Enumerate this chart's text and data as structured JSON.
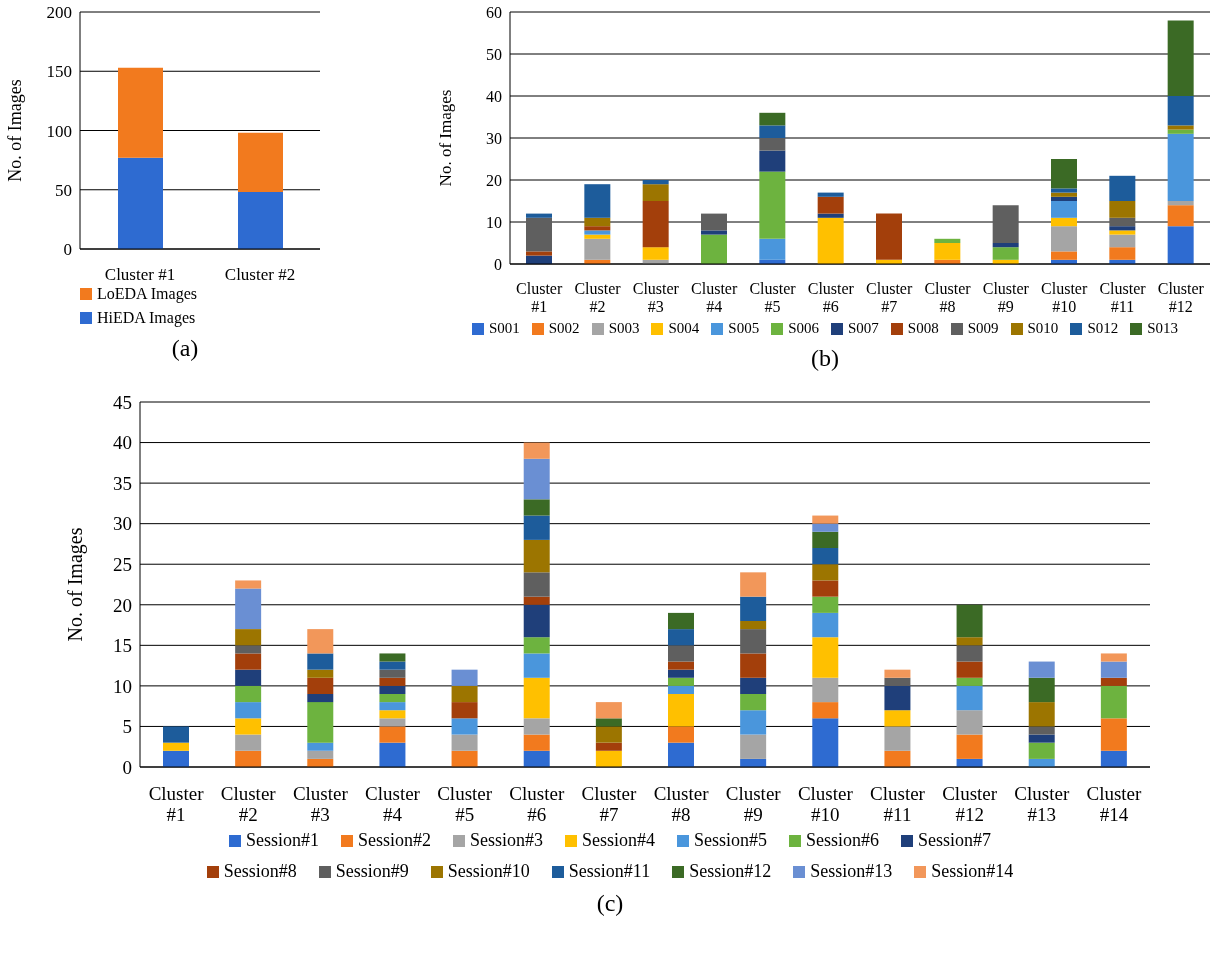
{
  "chart_data": [
    {
      "type": "bar",
      "stacked": true,
      "ylabel": "No. of Images",
      "categories": [
        "Cluster #1",
        "Cluster #2"
      ],
      "ylim": [
        0,
        200
      ],
      "yticks": [
        0,
        50,
        100,
        150,
        200
      ],
      "grid": "y",
      "legend": "bottom left",
      "annotations": [
        "(a)"
      ],
      "series": [
        {
          "name": "HiEDA Images",
          "color": "#2e6bd1",
          "values": [
            77,
            48
          ]
        },
        {
          "name": "LoEDA Images",
          "color": "#f27a1e",
          "values": [
            76,
            50
          ]
        }
      ]
    },
    {
      "type": "bar",
      "stacked": true,
      "ylabel": "No. of Images",
      "categories": [
        "Cluster #1",
        "Cluster #2",
        "Cluster #3",
        "Cluster #4",
        "Cluster #5",
        "Cluster #6",
        "Cluster #7",
        "Cluster #8",
        "Cluster #9",
        "Cluster #10",
        "Cluster #11",
        "Cluster #12"
      ],
      "ylim": [
        0,
        60
      ],
      "yticks": [
        0,
        10,
        20,
        30,
        40,
        50,
        60
      ],
      "grid": "y",
      "legend": "bottom",
      "annotations": [
        "(b)"
      ],
      "series": [
        {
          "name": "S001",
          "color": "#2e6bd1",
          "values": [
            0,
            0,
            0,
            0,
            1,
            0,
            0,
            0,
            0,
            1,
            1,
            9
          ]
        },
        {
          "name": "S002",
          "color": "#f27a1e",
          "values": [
            0,
            1,
            0,
            0,
            0,
            0,
            0,
            1,
            0,
            2,
            3,
            5
          ]
        },
        {
          "name": "S003",
          "color": "#a5a5a5",
          "values": [
            0,
            5,
            1,
            0,
            0,
            0,
            0,
            0,
            0,
            6,
            3,
            1
          ]
        },
        {
          "name": "S004",
          "color": "#ffc000",
          "values": [
            0,
            1,
            3,
            0,
            0,
            11,
            1,
            4,
            1,
            2,
            1,
            0
          ]
        },
        {
          "name": "S005",
          "color": "#4a96dc",
          "values": [
            0,
            1,
            0,
            0,
            5,
            0,
            0,
            0,
            0,
            4,
            0,
            16
          ]
        },
        {
          "name": "S006",
          "color": "#6db33f",
          "values": [
            0,
            0,
            0,
            7,
            16,
            0,
            0,
            1,
            3,
            0,
            0,
            1
          ]
        },
        {
          "name": "S007",
          "color": "#1f3f7a",
          "values": [
            2,
            0,
            0,
            1,
            5,
            1,
            0,
            0,
            1,
            1,
            1,
            0
          ]
        },
        {
          "name": "S008",
          "color": "#a33f0b",
          "values": [
            1,
            1,
            11,
            0,
            0,
            4,
            11,
            0,
            0,
            0,
            0,
            0
          ]
        },
        {
          "name": "S009",
          "color": "#5f5f5f",
          "values": [
            8,
            0,
            0,
            4,
            3,
            0,
            0,
            0,
            9,
            0,
            2,
            0
          ]
        },
        {
          "name": "S010",
          "color": "#9c7500",
          "values": [
            0,
            2,
            4,
            0,
            0,
            0,
            0,
            0,
            0,
            1,
            4,
            1
          ]
        },
        {
          "name": "S012",
          "color": "#1d5c9b",
          "values": [
            1,
            8,
            1,
            0,
            3,
            1,
            0,
            0,
            0,
            1,
            6,
            7
          ]
        },
        {
          "name": "S013",
          "color": "#3b6a25",
          "values": [
            0,
            0,
            0,
            0,
            3,
            0,
            0,
            0,
            0,
            7,
            0,
            18
          ]
        }
      ]
    },
    {
      "type": "bar",
      "stacked": true,
      "ylabel": "No. of Images",
      "categories": [
        "Cluster #1",
        "Cluster #2",
        "Cluster #3",
        "Cluster #4",
        "Cluster #5",
        "Cluster #6",
        "Cluster #7",
        "Cluster #8",
        "Cluster #9",
        "Cluster #10",
        "Cluster #11",
        "Cluster #12",
        "Cluster #13",
        "Cluster #14"
      ],
      "ylim": [
        0,
        45
      ],
      "yticks": [
        0,
        5,
        10,
        15,
        20,
        25,
        30,
        35,
        40,
        45
      ],
      "grid": "y",
      "legend": "bottom",
      "annotations": [
        "(c)"
      ],
      "series": [
        {
          "name": "Session#1",
          "color": "#2e6bd1",
          "values": [
            2,
            0,
            0,
            3,
            0,
            2,
            0,
            3,
            1,
            6,
            0,
            1,
            0,
            2
          ]
        },
        {
          "name": "Session#2",
          "color": "#f27a1e",
          "values": [
            0,
            2,
            1,
            2,
            2,
            2,
            0,
            2,
            0,
            2,
            2,
            3,
            0,
            4
          ]
        },
        {
          "name": "Session#3",
          "color": "#a5a5a5",
          "values": [
            0,
            2,
            1,
            1,
            2,
            2,
            0,
            0,
            3,
            3,
            3,
            3,
            0,
            0
          ]
        },
        {
          "name": "Session#4",
          "color": "#ffc000",
          "values": [
            1,
            2,
            0,
            1,
            0,
            5,
            2,
            4,
            0,
            5,
            2,
            0,
            0,
            0
          ]
        },
        {
          "name": "Session#5",
          "color": "#4a96dc",
          "values": [
            0,
            2,
            1,
            1,
            2,
            3,
            0,
            1,
            3,
            3,
            0,
            3,
            1,
            0
          ]
        },
        {
          "name": "Session#6",
          "color": "#6db33f",
          "values": [
            0,
            2,
            5,
            1,
            0,
            2,
            0,
            1,
            2,
            2,
            0,
            1,
            2,
            4
          ]
        },
        {
          "name": "Session#7",
          "color": "#1f3f7a",
          "values": [
            0,
            2,
            1,
            1,
            0,
            4,
            0,
            1,
            2,
            0,
            3,
            0,
            1,
            0
          ]
        },
        {
          "name": "Session#8",
          "color": "#a33f0b",
          "values": [
            0,
            2,
            2,
            1,
            2,
            1,
            1,
            1,
            3,
            2,
            0,
            2,
            0,
            1
          ]
        },
        {
          "name": "Session#9",
          "color": "#5f5f5f",
          "values": [
            0,
            1,
            0,
            1,
            0,
            3,
            0,
            2,
            3,
            0,
            1,
            2,
            1,
            0
          ]
        },
        {
          "name": "Session#10",
          "color": "#9c7500",
          "values": [
            0,
            2,
            1,
            0,
            2,
            4,
            2,
            0,
            1,
            2,
            0,
            1,
            3,
            0
          ]
        },
        {
          "name": "Session#11",
          "color": "#1d5c9b",
          "values": [
            2,
            0,
            2,
            1,
            0,
            3,
            0,
            2,
            3,
            2,
            0,
            0,
            0,
            0
          ]
        },
        {
          "name": "Session#12",
          "color": "#3b6a25",
          "values": [
            0,
            0,
            0,
            1,
            0,
            2,
            1,
            2,
            0,
            2,
            0,
            4,
            3,
            0
          ]
        },
        {
          "name": "Session#13",
          "color": "#6a8fd3",
          "values": [
            0,
            5,
            0,
            0,
            2,
            5,
            0,
            0,
            0,
            1,
            0,
            0,
            2,
            2
          ]
        },
        {
          "name": "Session#14",
          "color": "#f2975a",
          "values": [
            0,
            1,
            3,
            0,
            0,
            2,
            2,
            0,
            3,
            1,
            1,
            0,
            0,
            1
          ]
        }
      ]
    }
  ]
}
